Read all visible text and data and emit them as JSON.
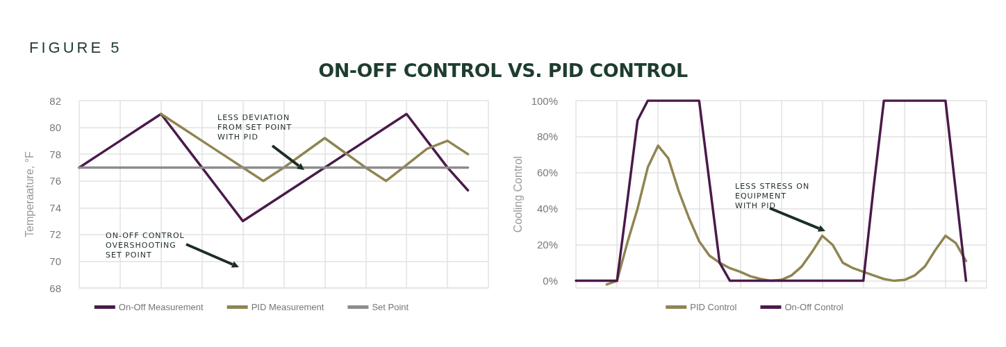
{
  "chart_data": [
    {
      "type": "line",
      "title": "FIGURE 5",
      "subtitle": "ON-OFF CONTROL VS. PID CONTROL",
      "ylabel": "Temperaature, °F",
      "categories": [
        null,
        null,
        null,
        null,
        null,
        null,
        null,
        null,
        null,
        null,
        null,
        null,
        null,
        null,
        null,
        null,
        null,
        null,
        null,
        null,
        null
      ],
      "ylim": [
        68,
        82
      ],
      "yticks": [
        68,
        70,
        72,
        74,
        76,
        78,
        80,
        82
      ],
      "tick_labels": "y",
      "grid": true,
      "legend": "bottom",
      "marker": "none",
      "line_style": "solid",
      "series": [
        {
          "name": "On-Off Measurement",
          "color": "#4a1a4a",
          "values": [
            77,
            78,
            79,
            80,
            81,
            79,
            77,
            75,
            73,
            74,
            75,
            76,
            77,
            78,
            79,
            80,
            81,
            79,
            77,
            75.3,
            null
          ]
        },
        {
          "name": "PID Measurement",
          "color": "#8f8552",
          "values": [
            null,
            null,
            null,
            null,
            81,
            80,
            79,
            78,
            77,
            76,
            77,
            78.1,
            79.2,
            78.1,
            77,
            76,
            77.2,
            78.4,
            79,
            78,
            null
          ]
        },
        {
          "name": "Set Point",
          "color": "#8c8c8c",
          "values": [
            77,
            77,
            77,
            77,
            77,
            77,
            77,
            77,
            77,
            77,
            77,
            77,
            77,
            77,
            77,
            77,
            77,
            77,
            77,
            77,
            null
          ]
        }
      ],
      "annotations": [
        "LESS DEVIATION\nFROM SET POINT\nWITH PID",
        "ON-OFF CONTROL\nOVERSHOOTING\nSET POINT"
      ]
    },
    {
      "type": "line",
      "ylabel": "Cooling Control",
      "categories": [
        null,
        null,
        null,
        null,
        null,
        null,
        null,
        null,
        null,
        null,
        null,
        null,
        null,
        null,
        null,
        null,
        null,
        null,
        null,
        null,
        null,
        null,
        null,
        null,
        null,
        null,
        null,
        null,
        null,
        null,
        null,
        null,
        null,
        null,
        null,
        null,
        null,
        null,
        null,
        null,
        null
      ],
      "ylim": [
        -4,
        100
      ],
      "yticks": [
        {
          "value": 0,
          "label": "0%"
        },
        {
          "value": 20,
          "label": "20%"
        },
        {
          "value": 40,
          "label": "40%"
        },
        {
          "value": 60,
          "label": "60%"
        },
        {
          "value": 80,
          "label": "80%"
        },
        {
          "value": 100,
          "label": "100%"
        }
      ],
      "tick_labels": "y",
      "grid": true,
      "legend": "bottom",
      "marker": "none",
      "line_style": "solid",
      "series": [
        {
          "name": "PID Control",
          "color": "#8f8552",
          "values": [
            null,
            null,
            null,
            -2,
            0,
            21,
            40,
            63,
            75,
            68,
            50,
            35,
            22,
            14,
            10,
            7,
            5,
            2.5,
            1,
            0,
            0.5,
            3,
            8,
            16,
            25,
            20,
            10,
            7,
            5,
            3,
            1,
            0,
            0.5,
            3,
            8,
            17,
            25,
            21,
            11,
            null,
            null
          ]
        },
        {
          "name": "On-Off Control",
          "color": "#4a1a4a",
          "values": [
            0,
            0,
            0,
            0,
            0,
            44,
            89,
            100,
            100,
            100,
            100,
            100,
            100,
            55,
            10,
            0,
            0,
            0,
            0,
            0,
            0,
            0,
            0,
            0,
            0,
            0,
            0,
            0,
            0,
            52,
            100,
            100,
            100,
            100,
            100,
            100,
            100,
            50,
            0,
            null,
            null
          ]
        }
      ],
      "annotations": [
        "LESS STRESS ON\nEQUIPMENT\nWITH PID"
      ]
    }
  ]
}
